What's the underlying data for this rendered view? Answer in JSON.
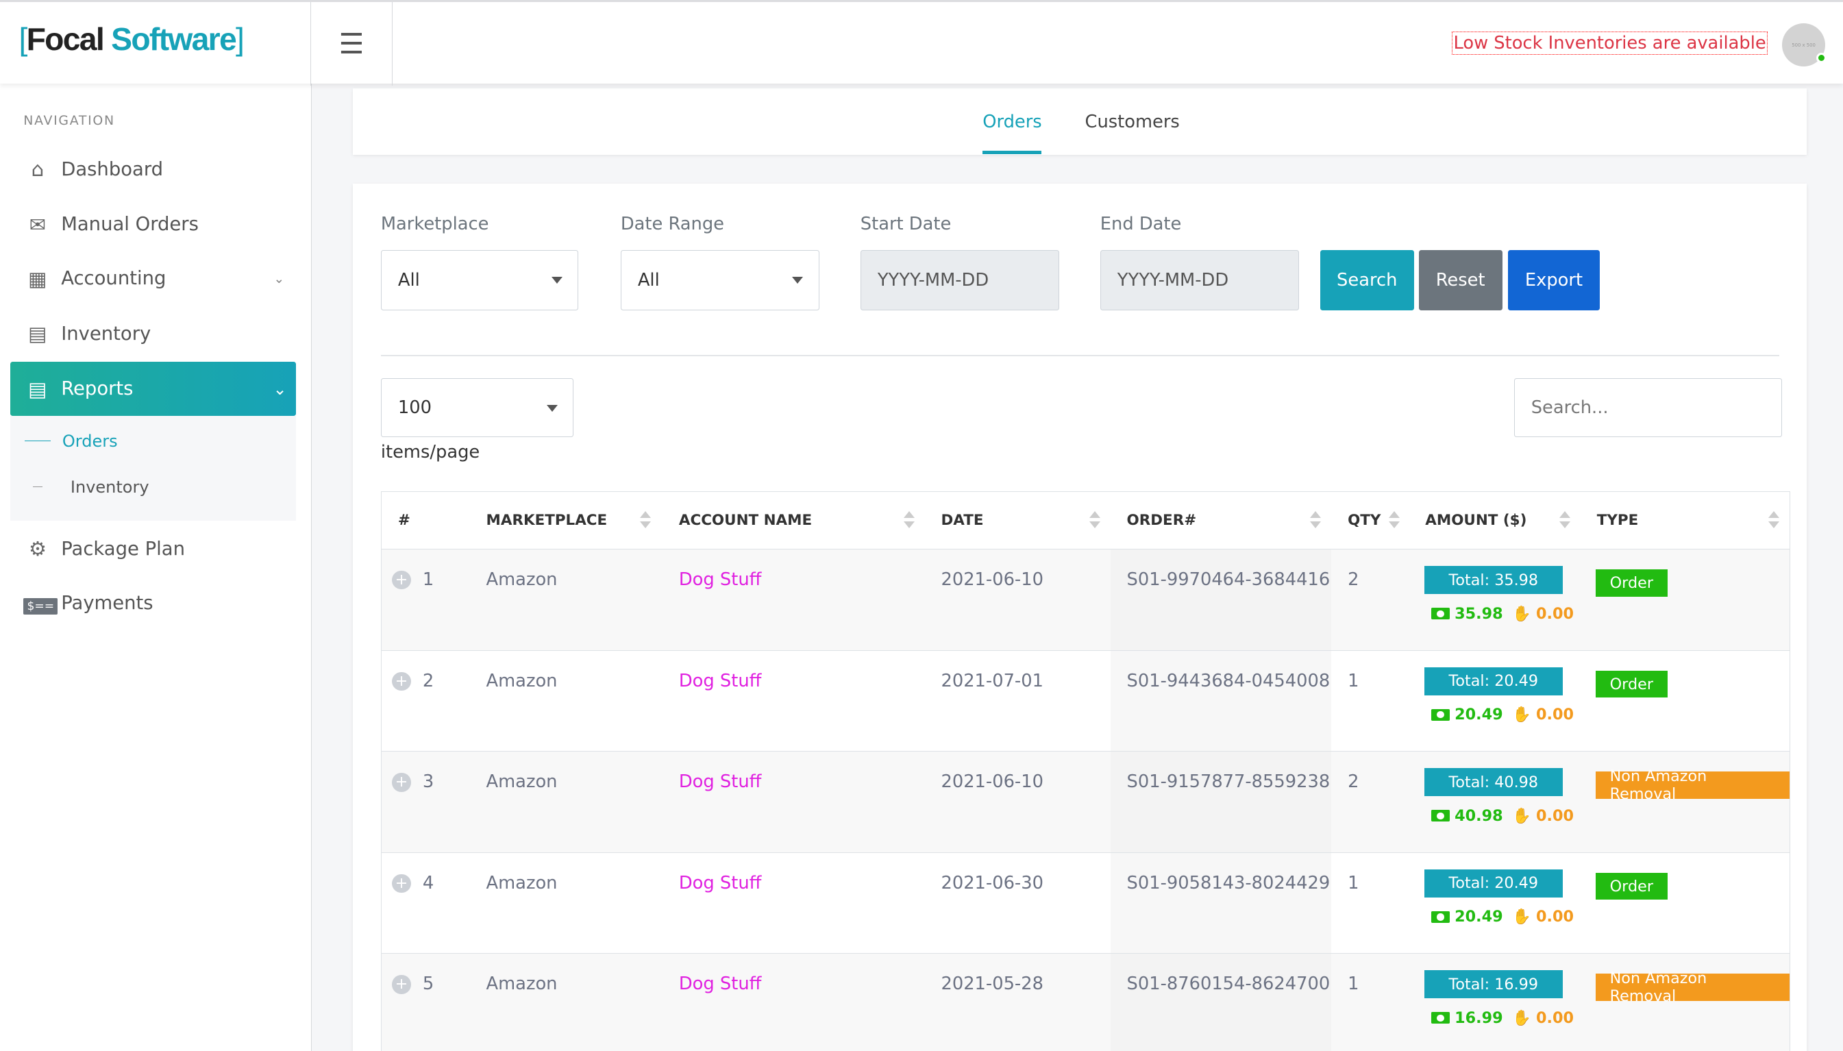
{
  "brand": {
    "bracket_open": "[",
    "word1": "Focal",
    "word2": "Software",
    "bracket_close": "]"
  },
  "header": {
    "menu_icon": "hamburger-icon",
    "alert": "Low Stock Inventories are available",
    "avatar_text": "500 x 500",
    "status_color": "#22bb11"
  },
  "sidebar": {
    "section": "NAVIGATION",
    "items": [
      {
        "label": "Dashboard",
        "icon": "home-icon"
      },
      {
        "label": "Manual Orders",
        "icon": "inbox-icon"
      },
      {
        "label": "Accounting",
        "icon": "calculator-icon"
      },
      {
        "label": "Inventory",
        "icon": "briefcase-icon"
      },
      {
        "label": "Reports",
        "icon": "report-icon"
      },
      {
        "label": "Package Plan",
        "icon": "gear-icon"
      },
      {
        "label": "Payments",
        "icon": "payment-icon"
      }
    ],
    "sub": [
      {
        "label": "Orders"
      },
      {
        "label": "Inventory"
      }
    ],
    "accent": "#17a2b8"
  },
  "tabs": [
    {
      "label": "Orders"
    },
    {
      "label": "Customers"
    }
  ],
  "filters": {
    "marketplace_label": "Marketplace",
    "marketplace_value": "All",
    "daterange_label": "Date Range",
    "daterange_value": "All",
    "start_label": "Start Date",
    "start_placeholder": "YYYY-MM-DD",
    "end_label": "End Date",
    "end_placeholder": "YYYY-MM-DD",
    "search": "Search",
    "reset": "Reset",
    "export": "Export"
  },
  "pager": {
    "per_page": "100",
    "per_page_label": "items/page",
    "search_placeholder": "Search..."
  },
  "table": {
    "headers": [
      "#",
      "MARKETPLACE",
      "ACCOUNT NAME",
      "DATE",
      "ORDER#",
      "QTY",
      "AMOUNT ($)",
      "TYPE"
    ],
    "rows": [
      {
        "n": "1",
        "marketplace": "Amazon",
        "account": "Dog Stuff",
        "date": "2021-06-10",
        "order": "S01-9970464-3684416",
        "qty": "2",
        "total": "Total: 35.98",
        "paid": "35.98",
        "refund": "0.00",
        "type": "Order"
      },
      {
        "n": "2",
        "marketplace": "Amazon",
        "account": "Dog Stuff",
        "date": "2021-07-01",
        "order": "S01-9443684-0454008",
        "qty": "1",
        "total": "Total: 20.49",
        "paid": "20.49",
        "refund": "0.00",
        "type": "Order"
      },
      {
        "n": "3",
        "marketplace": "Amazon",
        "account": "Dog Stuff",
        "date": "2021-06-10",
        "order": "S01-9157877-8559238",
        "qty": "2",
        "total": "Total: 40.98",
        "paid": "40.98",
        "refund": "0.00",
        "type": "Non Amazon Removal"
      },
      {
        "n": "4",
        "marketplace": "Amazon",
        "account": "Dog Stuff",
        "date": "2021-06-30",
        "order": "S01-9058143-8024429",
        "qty": "1",
        "total": "Total: 20.49",
        "paid": "20.49",
        "refund": "0.00",
        "type": "Order"
      },
      {
        "n": "5",
        "marketplace": "Amazon",
        "account": "Dog Stuff",
        "date": "2021-05-28",
        "order": "S01-8760154-8624700",
        "qty": "1",
        "total": "Total: 16.99",
        "paid": "16.99",
        "refund": "0.00",
        "type": "Non Amazon Removal"
      }
    ]
  },
  "type_colors": {
    "Order": "#22bb11",
    "Non Amazon Removal": "#f39a1e"
  }
}
